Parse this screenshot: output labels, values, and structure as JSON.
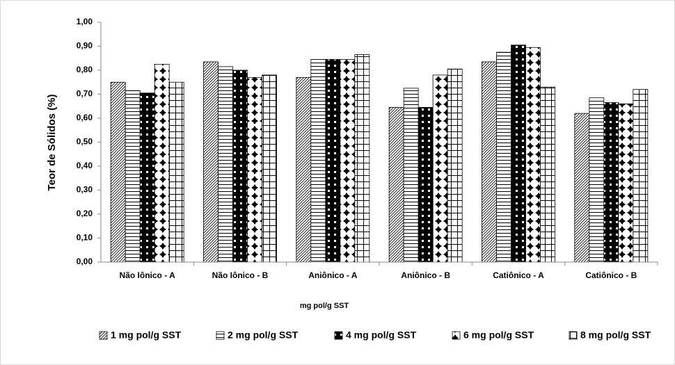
{
  "chart_data": {
    "type": "bar",
    "y_label": "Teor de Sólidos (%)",
    "x_label": "mg pol/g SST",
    "categories": [
      "Não Iônico - A",
      "Não Iônico - B",
      "Aniônico - A",
      "Aniônico - B",
      "Catiônico - A",
      "Catiônico - B"
    ],
    "series": [
      {
        "name": "1 mg pol/g SST",
        "color": "#000000",
        "values": [
          0.75,
          0.835,
          0.77,
          0.645,
          0.835,
          0.62
        ]
      },
      {
        "name": "2 mg pol/g SST",
        "color": "#000000",
        "values": [
          0.715,
          0.815,
          0.845,
          0.725,
          0.875,
          0.685
        ]
      },
      {
        "name": "4 mg pol/g SST",
        "color": "#000000",
        "values": [
          0.705,
          0.8,
          0.845,
          0.645,
          0.905,
          0.665
        ]
      },
      {
        "name": "6 mg pol/g SST",
        "color": "#000000",
        "values": [
          0.825,
          0.77,
          0.845,
          0.78,
          0.895,
          0.66
        ]
      },
      {
        "name": "8 mg pol/g SST",
        "color": "#000000",
        "values": [
          0.75,
          0.78,
          0.865,
          0.805,
          0.73,
          0.72
        ]
      }
    ],
    "ylim": [
      0,
      1
    ],
    "yticks": [
      {
        "value": 0,
        "label": "0,00"
      },
      {
        "value": 0.1,
        "label": "0,10"
      },
      {
        "value": 0.2,
        "label": "0,20"
      },
      {
        "value": 0.3,
        "label": "0,30"
      },
      {
        "value": 0.4,
        "label": "0,40"
      },
      {
        "value": 0.5,
        "label": "0,50"
      },
      {
        "value": 0.6,
        "label": "0,60"
      },
      {
        "value": 0.7,
        "label": "0,70"
      },
      {
        "value": 0.8,
        "label": "0,80"
      },
      {
        "value": 0.9,
        "label": "0,90"
      },
      {
        "value": 1,
        "label": "1,00"
      }
    ],
    "grid": false,
    "legend": "bottom"
  }
}
